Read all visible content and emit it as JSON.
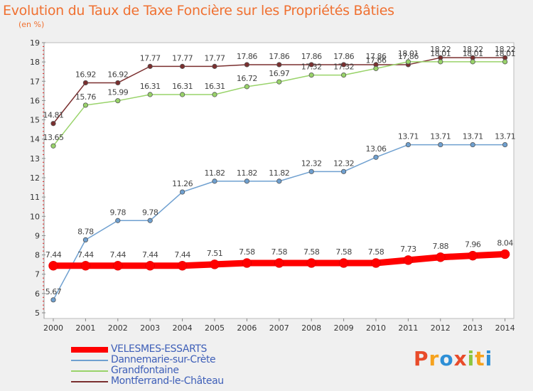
{
  "header": {
    "title": "Evolution du Taux de Taxe Foncière sur les Propriétés Bâties",
    "unit": "(en %)"
  },
  "logo": {
    "text": "Proxiti",
    "letters": [
      {
        "ch": "P",
        "color": "#e84b2a"
      },
      {
        "ch": "r",
        "color": "#f6a21e"
      },
      {
        "ch": "o",
        "color": "#2e8fd6"
      },
      {
        "ch": "x",
        "color": "#e84b2a"
      },
      {
        "ch": "i",
        "color": "#8cc63f"
      },
      {
        "ch": "t",
        "color": "#f6a21e"
      },
      {
        "ch": "i",
        "color": "#2e8fd6"
      }
    ]
  },
  "chart_data": {
    "type": "line",
    "title": "Evolution du Taux de Taxe Foncière sur les Propriétés Bâties",
    "ylabel": "(en %)",
    "xlabel": "",
    "x": [
      "2000",
      "2001",
      "2002",
      "2003",
      "2004",
      "2005",
      "2006",
      "2007",
      "2008",
      "2009",
      "2010",
      "2011",
      "2012",
      "2013",
      "2014"
    ],
    "ylim": [
      5,
      19
    ],
    "yticks": [
      "5",
      "6",
      "7",
      "8",
      "9",
      "10",
      "11",
      "12",
      "13",
      "14",
      "15",
      "16",
      "17",
      "18",
      "19"
    ],
    "grid": false,
    "legend_position": "bottom",
    "series": [
      {
        "name": "VELESMES-ESSARTS",
        "color": "#ff0000",
        "values": [
          7.44,
          7.44,
          7.44,
          7.44,
          7.44,
          7.51,
          7.58,
          7.58,
          7.58,
          7.58,
          7.58,
          7.73,
          7.88,
          7.96,
          8.04
        ],
        "labels": [
          "7.44",
          "7.44",
          "7.44",
          "7.44",
          "7.44",
          "7.51",
          "7.58",
          "7.58",
          "7.58",
          "7.58",
          "7.58",
          "7.73",
          "7.88",
          "7.96",
          "8.04"
        ]
      },
      {
        "name": "Dannemarie-sur-Crète",
        "color": "#6fa0d0",
        "values": [
          5.67,
          8.78,
          9.78,
          9.78,
          11.26,
          11.82,
          11.82,
          11.82,
          12.32,
          12.32,
          13.06,
          13.71,
          13.71,
          13.71,
          13.71
        ],
        "labels": [
          "5.67",
          "8.78",
          "9.78",
          "9.78",
          "11.26",
          "11.82",
          "11.82",
          "11.82",
          "12.32",
          "12.32",
          "13.06",
          "13.71",
          "13.71",
          "13.71",
          "13.71"
        ]
      },
      {
        "name": "Grandfontaine",
        "color": "#99d36a",
        "values": [
          13.65,
          15.76,
          15.99,
          16.31,
          16.31,
          16.31,
          16.72,
          16.97,
          17.32,
          17.32,
          17.66,
          18.01,
          18.01,
          18.01,
          18.01
        ],
        "labels": [
          "13.65",
          "15.76",
          "15.99",
          "16.31",
          "16.31",
          "16.31",
          "16.72",
          "16.97",
          "17.32",
          "17.32",
          "17.66",
          "18.01",
          "18.01",
          "18.01",
          "18.01"
        ]
      },
      {
        "name": "Montferrand-le-Château",
        "color": "#7a2f2f",
        "values": [
          14.81,
          16.92,
          16.92,
          17.77,
          17.77,
          17.77,
          17.86,
          17.86,
          17.86,
          17.86,
          17.86,
          17.86,
          18.22,
          18.22,
          18.22
        ],
        "labels": [
          "14.81",
          "16.92",
          "16.92",
          "17.77",
          "17.77",
          "17.77",
          "17.86",
          "17.86",
          "17.86",
          "17.86",
          "17.86",
          "17.86",
          "18.22",
          "18.22",
          "18.22"
        ]
      }
    ]
  }
}
